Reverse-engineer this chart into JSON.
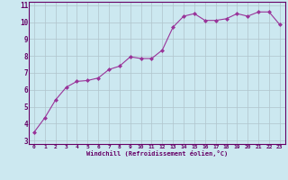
{
  "x": [
    0,
    1,
    2,
    3,
    4,
    5,
    6,
    7,
    8,
    9,
    10,
    11,
    12,
    13,
    14,
    15,
    16,
    17,
    18,
    19,
    20,
    21,
    22,
    23
  ],
  "y": [
    3.5,
    4.35,
    5.4,
    6.15,
    6.5,
    6.55,
    6.7,
    7.2,
    7.4,
    7.95,
    7.85,
    7.85,
    8.35,
    9.7,
    10.35,
    10.5,
    10.1,
    10.1,
    10.2,
    10.5,
    10.35,
    10.6,
    10.6,
    9.85
  ],
  "line_color": "#993399",
  "marker": "D",
  "marker_size": 2.0,
  "bg_color": "#cce8f0",
  "grid_color": "#b0c4cc",
  "xlabel": "Windchill (Refroidissement éolien,°C)",
  "ylabel_ticks": [
    3,
    4,
    5,
    6,
    7,
    8,
    9,
    10,
    11
  ],
  "xlim": [
    -0.5,
    23.5
  ],
  "ylim": [
    2.8,
    11.2
  ],
  "tick_color": "#660066",
  "label_color": "#660066",
  "spine_color": "#660066"
}
